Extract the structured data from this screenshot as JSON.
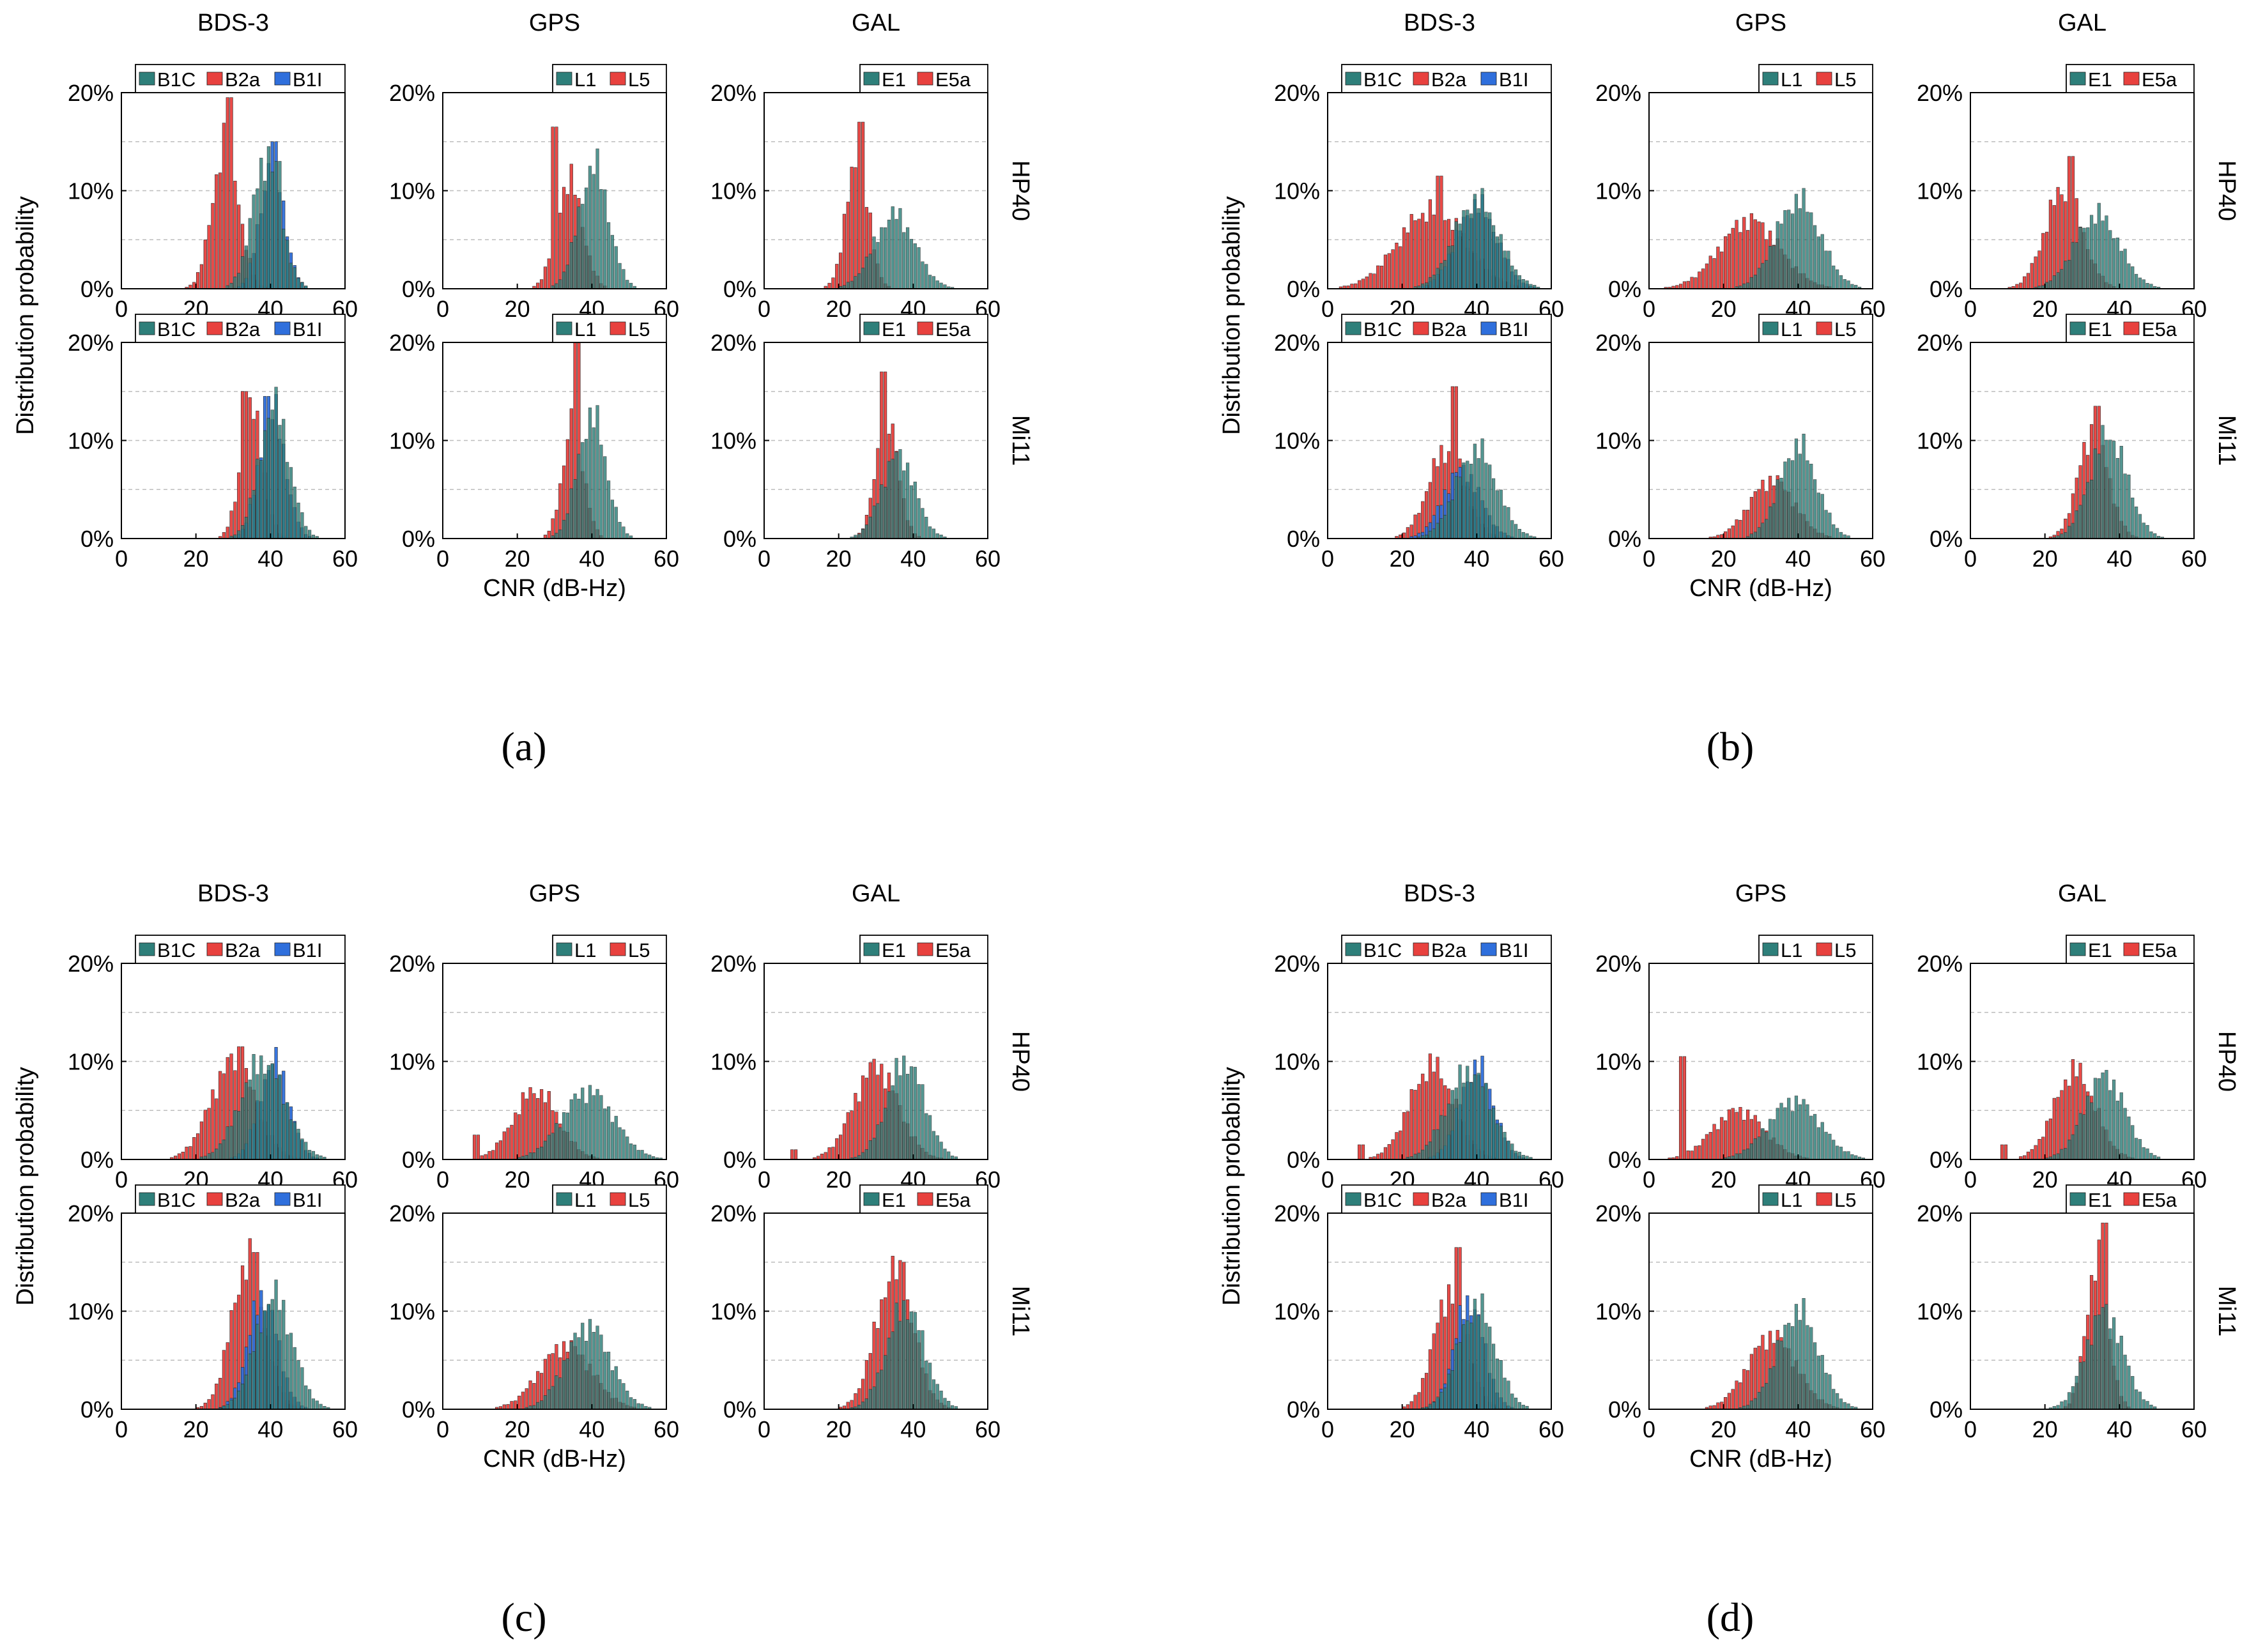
{
  "figure": {
    "x_axis_label": "CNR (dB-Hz)",
    "y_axis_label": "Distribution probability",
    "column_titles": [
      "BDS-3",
      "GPS",
      "GAL"
    ],
    "row_labels": [
      "HP40",
      "Mi11"
    ],
    "x_ticks": [
      "0",
      "20",
      "40",
      "60"
    ],
    "y_ticks": [
      "0%",
      "10%",
      "20%"
    ]
  },
  "colors": {
    "teal": "#2e7f7a",
    "red": "#e8413e",
    "blue": "#2f6fdc",
    "grid": "#bdbdbd",
    "axis": "#000000"
  },
  "chart_data": [
    {
      "id": "a",
      "label": "(a)",
      "panels": [
        {
          "row": "HP40",
          "col": "BDS-3",
          "legend": [
            "B1C",
            "B2a",
            "B1I"
          ],
          "series": [
            {
              "name": "B1C",
              "color": "teal",
              "mean": 39,
              "sd": 3.8,
              "peak": 13.5,
              "spikes": [
                [
                  42,
                  13
                ]
              ]
            },
            {
              "name": "B2a",
              "color": "red",
              "mean": 28,
              "sd": 3.5,
              "peak": 15,
              "spikes": [
                [
                  29,
                  19.5
                ]
              ]
            },
            {
              "name": "B1I",
              "color": "blue",
              "mean": 40.5,
              "sd": 3.2,
              "peak": 13,
              "spikes": [
                [
                  41,
                  15
                ]
              ]
            }
          ]
        },
        {
          "row": "HP40",
          "col": "GPS",
          "legend": [
            "L1",
            "L5"
          ],
          "series": [
            {
              "name": "L1",
              "color": "teal",
              "mean": 40.5,
              "sd": 4,
              "peak": 12.5,
              "spikes": []
            },
            {
              "name": "L5",
              "color": "red",
              "mean": 34,
              "sd": 3.5,
              "peak": 11,
              "spikes": [
                [
                  30,
                  16.5
                ]
              ]
            }
          ]
        },
        {
          "row": "HP40",
          "col": "GAL",
          "legend": [
            "E1",
            "E5a"
          ],
          "series": [
            {
              "name": "E1",
              "color": "teal",
              "mean": 35,
              "sd": 5.5,
              "peak": 7.5,
              "spikes": []
            },
            {
              "name": "E5a",
              "color": "red",
              "mean": 25,
              "sd": 3,
              "peak": 13,
              "spikes": [
                [
                  26,
                  17
                ]
              ]
            }
          ]
        },
        {
          "row": "Mi11",
          "col": "BDS-3",
          "legend": [
            "B1C",
            "B2a",
            "B1I"
          ],
          "series": [
            {
              "name": "B1C",
              "color": "teal",
              "mean": 41,
              "sd": 4,
              "peak": 13.5,
              "spikes": []
            },
            {
              "name": "B2a",
              "color": "red",
              "mean": 35,
              "sd": 3,
              "peak": 13,
              "spikes": [
                [
                  33,
                  15
                ]
              ]
            },
            {
              "name": "B1I",
              "color": "blue",
              "mean": 40.5,
              "sd": 3.5,
              "peak": 13,
              "spikes": [
                [
                  39,
                  14.5
                ]
              ]
            }
          ]
        },
        {
          "row": "Mi11",
          "col": "GPS",
          "legend": [
            "L1",
            "L5"
          ],
          "series": [
            {
              "name": "L1",
              "color": "teal",
              "mean": 40,
              "sd": 3.8,
              "peak": 12.5,
              "spikes": []
            },
            {
              "name": "L5",
              "color": "red",
              "mean": 35,
              "sd": 2.8,
              "peak": 12,
              "spikes": [
                [
                  36,
                  20
                ]
              ]
            }
          ]
        },
        {
          "row": "Mi11",
          "col": "GAL",
          "legend": [
            "E1",
            "E5a"
          ],
          "series": [
            {
              "name": "E1",
              "color": "teal",
              "mean": 36,
              "sd": 4.5,
              "peak": 8.5,
              "spikes": []
            },
            {
              "name": "E5a",
              "color": "red",
              "mean": 33,
              "sd": 3,
              "peak": 12,
              "spikes": [
                [
                  32,
                  17
                ]
              ]
            }
          ]
        }
      ]
    },
    {
      "id": "b",
      "label": "(b)",
      "panels": [
        {
          "row": "HP40",
          "col": "BDS-3",
          "legend": [
            "B1C",
            "B2a",
            "B1I"
          ],
          "series": [
            {
              "name": "B1C",
              "color": "teal",
              "mean": 40,
              "sd": 6,
              "peak": 9,
              "spikes": []
            },
            {
              "name": "B2a",
              "color": "red",
              "mean": 28,
              "sd": 9,
              "peak": 8,
              "spikes": [
                [
                  30,
                  11.5
                ]
              ]
            },
            {
              "name": "B1I",
              "color": "blue",
              "mean": 40,
              "sd": 5.5,
              "peak": 8.5,
              "spikes": []
            }
          ]
        },
        {
          "row": "HP40",
          "col": "GPS",
          "legend": [
            "L1",
            "L5"
          ],
          "series": [
            {
              "name": "L1",
              "color": "teal",
              "mean": 40,
              "sd": 6,
              "peak": 9,
              "spikes": []
            },
            {
              "name": "L5",
              "color": "red",
              "mean": 27,
              "sd": 8,
              "peak": 7,
              "spikes": []
            }
          ]
        },
        {
          "row": "HP40",
          "col": "GAL",
          "legend": [
            "E1",
            "E5a"
          ],
          "series": [
            {
              "name": "E1",
              "color": "teal",
              "mean": 34,
              "sd": 6,
              "peak": 7.5,
              "spikes": []
            },
            {
              "name": "E5a",
              "color": "red",
              "mean": 25,
              "sd": 5,
              "peak": 10,
              "spikes": [
                [
                  27,
                  13.5
                ]
              ]
            }
          ]
        },
        {
          "row": "Mi11",
          "col": "BDS-3",
          "legend": [
            "B1C",
            "B2a",
            "B1I"
          ],
          "series": [
            {
              "name": "B1C",
              "color": "teal",
              "mean": 40,
              "sd": 5.5,
              "peak": 9,
              "spikes": []
            },
            {
              "name": "B2a",
              "color": "red",
              "mean": 32,
              "sd": 5,
              "peak": 9,
              "spikes": [
                [
                  34,
                  15.5
                ]
              ]
            },
            {
              "name": "B1I",
              "color": "blue",
              "mean": 36,
              "sd": 5,
              "peak": 7,
              "spikes": []
            }
          ]
        },
        {
          "row": "Mi11",
          "col": "GPS",
          "legend": [
            "L1",
            "L5"
          ],
          "series": [
            {
              "name": "L1",
              "color": "teal",
              "mean": 40,
              "sd": 5,
              "peak": 9.5,
              "spikes": []
            },
            {
              "name": "L5",
              "color": "red",
              "mean": 33,
              "sd": 6,
              "peak": 6,
              "spikes": []
            }
          ]
        },
        {
          "row": "Mi11",
          "col": "GAL",
          "legend": [
            "E1",
            "E5a"
          ],
          "series": [
            {
              "name": "E1",
              "color": "teal",
              "mean": 37,
              "sd": 5,
              "peak": 10.5,
              "spikes": []
            },
            {
              "name": "E5a",
              "color": "red",
              "mean": 33,
              "sd": 4,
              "peak": 11,
              "spikes": [
                [
                  34,
                  13.5
                ]
              ]
            }
          ]
        }
      ]
    },
    {
      "id": "c",
      "label": "(c)",
      "panels": [
        {
          "row": "HP40",
          "col": "BDS-3",
          "legend": [
            "B1C",
            "B2a",
            "B1I"
          ],
          "series": [
            {
              "name": "B1C",
              "color": "teal",
              "mean": 38,
              "sd": 6,
              "peak": 10,
              "spikes": []
            },
            {
              "name": "B2a",
              "color": "red",
              "mean": 30,
              "sd": 6,
              "peak": 10,
              "spikes": [
                [
                  32,
                  11.5
                ]
              ]
            },
            {
              "name": "B1I",
              "color": "blue",
              "mean": 41,
              "sd": 4,
              "peak": 10,
              "spikes": []
            }
          ]
        },
        {
          "row": "HP40",
          "col": "GPS",
          "legend": [
            "L1",
            "L5"
          ],
          "series": [
            {
              "name": "L1",
              "color": "teal",
              "mean": 39,
              "sd": 7,
              "peak": 7,
              "spikes": []
            },
            {
              "name": "L5",
              "color": "red",
              "mean": 25,
              "sd": 6,
              "peak": 7,
              "spikes": [
                [
                  9,
                  2.5
                ]
              ]
            }
          ]
        },
        {
          "row": "HP40",
          "col": "GAL",
          "legend": [
            "E1",
            "E5a"
          ],
          "series": [
            {
              "name": "E1",
              "color": "teal",
              "mean": 38,
              "sd": 5,
              "peak": 10,
              "spikes": []
            },
            {
              "name": "E5a",
              "color": "red",
              "mean": 30,
              "sd": 6,
              "peak": 9.5,
              "spikes": [
                [
                  8,
                  1
                ]
              ]
            }
          ]
        },
        {
          "row": "Mi11",
          "col": "BDS-3",
          "legend": [
            "B1C",
            "B2a",
            "B1I"
          ],
          "series": [
            {
              "name": "B1C",
              "color": "teal",
              "mean": 41,
              "sd": 5,
              "peak": 11.5,
              "spikes": []
            },
            {
              "name": "B2a",
              "color": "red",
              "mean": 34,
              "sd": 4.5,
              "peak": 15,
              "spikes": [
                [
                  36,
                  16
                ]
              ]
            },
            {
              "name": "B1I",
              "color": "blue",
              "mean": 38,
              "sd": 4,
              "peak": 11.5,
              "spikes": []
            }
          ]
        },
        {
          "row": "Mi11",
          "col": "GPS",
          "legend": [
            "L1",
            "L5"
          ],
          "series": [
            {
              "name": "L1",
              "color": "teal",
              "mean": 39,
              "sd": 6,
              "peak": 8.5,
              "spikes": []
            },
            {
              "name": "L5",
              "color": "red",
              "mean": 33,
              "sd": 7,
              "peak": 6.5,
              "spikes": []
            }
          ]
        },
        {
          "row": "Mi11",
          "col": "GAL",
          "legend": [
            "E1",
            "E5a"
          ],
          "series": [
            {
              "name": "E1",
              "color": "teal",
              "mean": 38,
              "sd": 5,
              "peak": 10.5,
              "spikes": []
            },
            {
              "name": "E5a",
              "color": "red",
              "mean": 35,
              "sd": 5,
              "peak": 14,
              "spikes": [
                [
                  37,
                  15
                ]
              ]
            }
          ]
        }
      ]
    },
    {
      "id": "d",
      "label": "(d)",
      "panels": [
        {
          "row": "HP40",
          "col": "BDS-3",
          "legend": [
            "B1C",
            "B2a",
            "B1I"
          ],
          "series": [
            {
              "name": "B1C",
              "color": "teal",
              "mean": 38,
              "sd": 6,
              "peak": 9,
              "spikes": []
            },
            {
              "name": "B2a",
              "color": "red",
              "mean": 28,
              "sd": 6,
              "peak": 9.5,
              "spikes": [
                [
                  9,
                  1.5
                ]
              ]
            },
            {
              "name": "B1I",
              "color": "blue",
              "mean": 40,
              "sd": 4.5,
              "peak": 9.5,
              "spikes": []
            }
          ]
        },
        {
          "row": "HP40",
          "col": "GPS",
          "legend": [
            "L1",
            "L5"
          ],
          "series": [
            {
              "name": "L1",
              "color": "teal",
              "mean": 39,
              "sd": 7,
              "peak": 6,
              "spikes": []
            },
            {
              "name": "L5",
              "color": "red",
              "mean": 24,
              "sd": 7,
              "peak": 5,
              "spikes": [
                [
                  9,
                  10.5
                ]
              ]
            }
          ]
        },
        {
          "row": "HP40",
          "col": "GAL",
          "legend": [
            "E1",
            "E5a"
          ],
          "series": [
            {
              "name": "E1",
              "color": "teal",
              "mean": 36,
              "sd": 5.5,
              "peak": 8.5,
              "spikes": []
            },
            {
              "name": "E5a",
              "color": "red",
              "mean": 28,
              "sd": 5.5,
              "peak": 9,
              "spikes": [
                [
                  9,
                  1.5
                ]
              ]
            }
          ]
        },
        {
          "row": "Mi11",
          "col": "BDS-3",
          "legend": [
            "B1C",
            "B2a",
            "B1I"
          ],
          "series": [
            {
              "name": "B1C",
              "color": "teal",
              "mean": 40,
              "sd": 5,
              "peak": 10.5,
              "spikes": []
            },
            {
              "name": "B2a",
              "color": "red",
              "mean": 33,
              "sd": 4.5,
              "peak": 12,
              "spikes": [
                [
                  35,
                  16.5
                ]
              ]
            },
            {
              "name": "B1I",
              "color": "blue",
              "mean": 38,
              "sd": 4,
              "peak": 11,
              "spikes": []
            }
          ]
        },
        {
          "row": "Mi11",
          "col": "GPS",
          "legend": [
            "L1",
            "L5"
          ],
          "series": [
            {
              "name": "L1",
              "color": "teal",
              "mean": 40,
              "sd": 5.5,
              "peak": 10,
              "spikes": []
            },
            {
              "name": "L5",
              "color": "red",
              "mean": 33,
              "sd": 6.5,
              "peak": 7.5,
              "spikes": []
            }
          ]
        },
        {
          "row": "Mi11",
          "col": "GAL",
          "legend": [
            "E1",
            "E5a"
          ],
          "series": [
            {
              "name": "E1",
              "color": "teal",
              "mean": 36,
              "sd": 5,
              "peak": 10,
              "spikes": []
            },
            {
              "name": "E5a",
              "color": "red",
              "mean": 34,
              "sd": 3,
              "peak": 15,
              "spikes": [
                [
                  36,
                  19
                ]
              ]
            }
          ]
        }
      ]
    }
  ]
}
